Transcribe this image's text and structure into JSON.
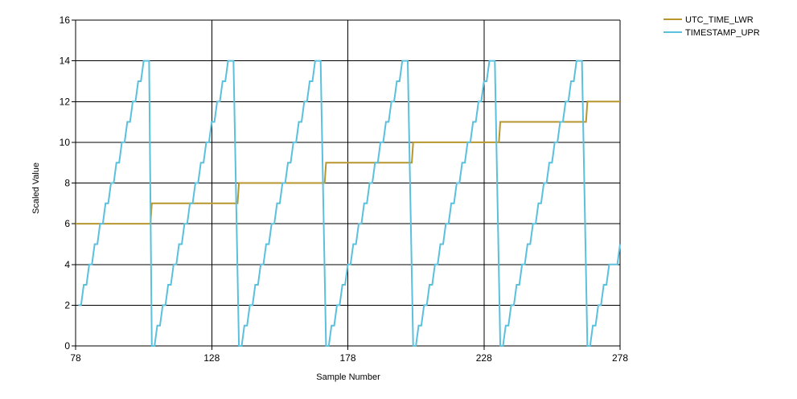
{
  "chart_data": {
    "type": "line",
    "xlabel": "Sample Number",
    "ylabel": "Scaled Value",
    "xlim": [
      78,
      278
    ],
    "ylim": [
      0,
      16
    ],
    "xticks": [
      78,
      128,
      178,
      228,
      278
    ],
    "yticks": [
      0,
      2,
      4,
      6,
      8,
      10,
      12,
      14,
      16
    ],
    "grid": true,
    "legend": "top-right",
    "series": [
      {
        "name": "UTC_TIME_LWR",
        "color": "#b8962e",
        "points": [
          [
            78,
            6
          ],
          [
            105.5,
            6
          ],
          [
            106,
            7
          ],
          [
            137.5,
            7
          ],
          [
            138,
            8
          ],
          [
            169.5,
            8
          ],
          [
            170,
            9
          ],
          [
            201.5,
            9
          ],
          [
            202,
            10
          ],
          [
            233.5,
            10
          ],
          [
            234,
            11
          ],
          [
            265.5,
            11
          ],
          [
            266,
            12
          ],
          [
            278,
            12
          ]
        ]
      },
      {
        "name": "TIMESTAMP_UPR",
        "color": "#5bc0de",
        "points": [
          [
            79,
            2
          ],
          [
            80,
            2
          ],
          [
            81,
            3
          ],
          [
            82,
            3
          ],
          [
            83,
            4
          ],
          [
            84,
            4
          ],
          [
            85,
            5
          ],
          [
            86,
            5
          ],
          [
            87,
            6
          ],
          [
            88,
            6
          ],
          [
            89,
            7
          ],
          [
            90,
            7
          ],
          [
            91,
            8
          ],
          [
            92,
            8
          ],
          [
            93,
            9
          ],
          [
            94,
            9
          ],
          [
            95,
            10
          ],
          [
            96,
            10
          ],
          [
            97,
            11
          ],
          [
            98,
            11
          ],
          [
            99,
            12
          ],
          [
            100,
            12
          ],
          [
            101,
            13
          ],
          [
            102,
            13
          ],
          [
            103,
            14
          ],
          [
            104,
            14
          ],
          [
            105,
            14
          ],
          [
            106,
            0
          ],
          [
            107,
            0
          ],
          [
            108,
            1
          ],
          [
            109,
            1
          ],
          [
            110,
            2
          ],
          [
            111,
            2
          ],
          [
            112,
            3
          ],
          [
            113,
            3
          ],
          [
            114,
            4
          ],
          [
            115,
            4
          ],
          [
            116,
            5
          ],
          [
            117,
            5
          ],
          [
            118,
            6
          ],
          [
            119,
            6
          ],
          [
            120,
            7
          ],
          [
            121,
            7
          ],
          [
            122,
            8
          ],
          [
            123,
            8
          ],
          [
            124,
            9
          ],
          [
            125,
            9
          ],
          [
            126,
            10
          ],
          [
            127,
            10
          ],
          [
            128,
            11
          ],
          [
            129,
            11
          ],
          [
            130,
            12
          ],
          [
            131,
            12
          ],
          [
            132,
            13
          ],
          [
            133,
            13
          ],
          [
            134,
            14
          ],
          [
            135,
            14
          ],
          [
            136,
            14
          ],
          [
            138,
            0
          ],
          [
            139,
            0
          ],
          [
            140,
            1
          ],
          [
            141,
            1
          ],
          [
            142,
            2
          ],
          [
            143,
            2
          ],
          [
            144,
            3
          ],
          [
            145,
            3
          ],
          [
            146,
            4
          ],
          [
            147,
            4
          ],
          [
            148,
            5
          ],
          [
            149,
            5
          ],
          [
            150,
            6
          ],
          [
            151,
            6
          ],
          [
            152,
            7
          ],
          [
            153,
            7
          ],
          [
            154,
            8
          ],
          [
            155,
            8
          ],
          [
            156,
            9
          ],
          [
            157,
            9
          ],
          [
            158,
            10
          ],
          [
            159,
            10
          ],
          [
            160,
            11
          ],
          [
            161,
            11
          ],
          [
            162,
            12
          ],
          [
            163,
            12
          ],
          [
            164,
            13
          ],
          [
            165,
            13
          ],
          [
            166,
            14
          ],
          [
            167,
            14
          ],
          [
            168,
            14
          ],
          [
            170,
            0
          ],
          [
            171,
            0
          ],
          [
            172,
            1
          ],
          [
            173,
            1
          ],
          [
            174,
            2
          ],
          [
            175,
            2
          ],
          [
            176,
            3
          ],
          [
            177,
            3
          ],
          [
            178,
            4
          ],
          [
            179,
            4
          ],
          [
            180,
            5
          ],
          [
            181,
            5
          ],
          [
            182,
            6
          ],
          [
            183,
            6
          ],
          [
            184,
            7
          ],
          [
            185,
            7
          ],
          [
            186,
            8
          ],
          [
            187,
            8
          ],
          [
            188,
            9
          ],
          [
            189,
            9
          ],
          [
            190,
            10
          ],
          [
            191,
            10
          ],
          [
            192,
            11
          ],
          [
            193,
            11
          ],
          [
            194,
            12
          ],
          [
            195,
            12
          ],
          [
            196,
            13
          ],
          [
            197,
            13
          ],
          [
            198,
            14
          ],
          [
            199,
            14
          ],
          [
            200,
            14
          ],
          [
            202,
            0
          ],
          [
            203,
            0
          ],
          [
            204,
            1
          ],
          [
            205,
            1
          ],
          [
            206,
            2
          ],
          [
            207,
            2
          ],
          [
            208,
            3
          ],
          [
            209,
            3
          ],
          [
            210,
            4
          ],
          [
            211,
            4
          ],
          [
            212,
            5
          ],
          [
            213,
            5
          ],
          [
            214,
            6
          ],
          [
            215,
            6
          ],
          [
            216,
            7
          ],
          [
            217,
            7
          ],
          [
            218,
            8
          ],
          [
            219,
            8
          ],
          [
            220,
            9
          ],
          [
            221,
            9
          ],
          [
            222,
            10
          ],
          [
            223,
            10
          ],
          [
            224,
            11
          ],
          [
            225,
            11
          ],
          [
            226,
            12
          ],
          [
            227,
            12
          ],
          [
            228,
            13
          ],
          [
            229,
            13
          ],
          [
            230,
            14
          ],
          [
            231,
            14
          ],
          [
            232,
            14
          ],
          [
            234,
            0
          ],
          [
            235,
            0
          ],
          [
            236,
            1
          ],
          [
            237,
            1
          ],
          [
            238,
            2
          ],
          [
            239,
            2
          ],
          [
            240,
            3
          ],
          [
            241,
            3
          ],
          [
            242,
            4
          ],
          [
            243,
            4
          ],
          [
            244,
            5
          ],
          [
            245,
            5
          ],
          [
            246,
            6
          ],
          [
            247,
            6
          ],
          [
            248,
            7
          ],
          [
            249,
            7
          ],
          [
            250,
            8
          ],
          [
            251,
            8
          ],
          [
            252,
            9
          ],
          [
            253,
            9
          ],
          [
            254,
            10
          ],
          [
            255,
            10
          ],
          [
            256,
            11
          ],
          [
            257,
            11
          ],
          [
            258,
            12
          ],
          [
            259,
            12
          ],
          [
            260,
            13
          ],
          [
            261,
            13
          ],
          [
            262,
            14
          ],
          [
            263,
            14
          ],
          [
            264,
            14
          ],
          [
            266,
            0
          ],
          [
            267,
            0
          ],
          [
            268,
            1
          ],
          [
            269,
            1
          ],
          [
            270,
            2
          ],
          [
            271,
            2
          ],
          [
            272,
            3
          ],
          [
            273,
            3
          ],
          [
            274,
            4
          ],
          [
            275,
            4
          ],
          [
            276,
            4
          ],
          [
            277,
            4
          ],
          [
            278,
            5
          ]
        ]
      }
    ]
  }
}
